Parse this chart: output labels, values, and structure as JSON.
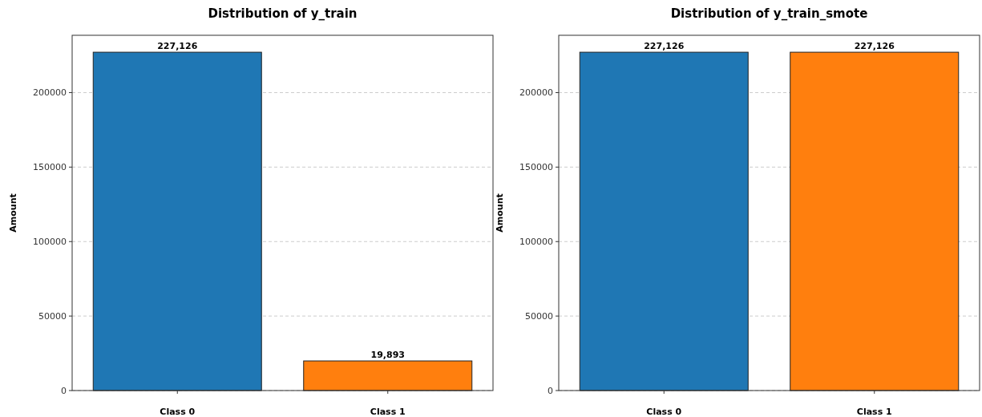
{
  "chart_data": [
    {
      "type": "bar",
      "title": "Distribution of y_train",
      "ylabel": "Amount",
      "categories": [
        "Class 0",
        "Class 1"
      ],
      "values": [
        227126,
        19893
      ],
      "colors": [
        "#1f77b4",
        "#ff7f0e"
      ],
      "value_labels": [
        "227,126",
        "19,893"
      ],
      "ylim": [
        0,
        238482
      ],
      "yticks": [
        0,
        50000,
        100000,
        150000,
        200000
      ],
      "grid": "y"
    },
    {
      "type": "bar",
      "title": "Distribution of y_train_smote",
      "ylabel": "Amount",
      "categories": [
        "Class 0",
        "Class 1"
      ],
      "values": [
        227126,
        227126
      ],
      "colors": [
        "#1f77b4",
        "#ff7f0e"
      ],
      "value_labels": [
        "227,126",
        "227,126"
      ],
      "ylim": [
        0,
        238482
      ],
      "yticks": [
        0,
        50000,
        100000,
        150000,
        200000
      ],
      "grid": "y"
    }
  ]
}
